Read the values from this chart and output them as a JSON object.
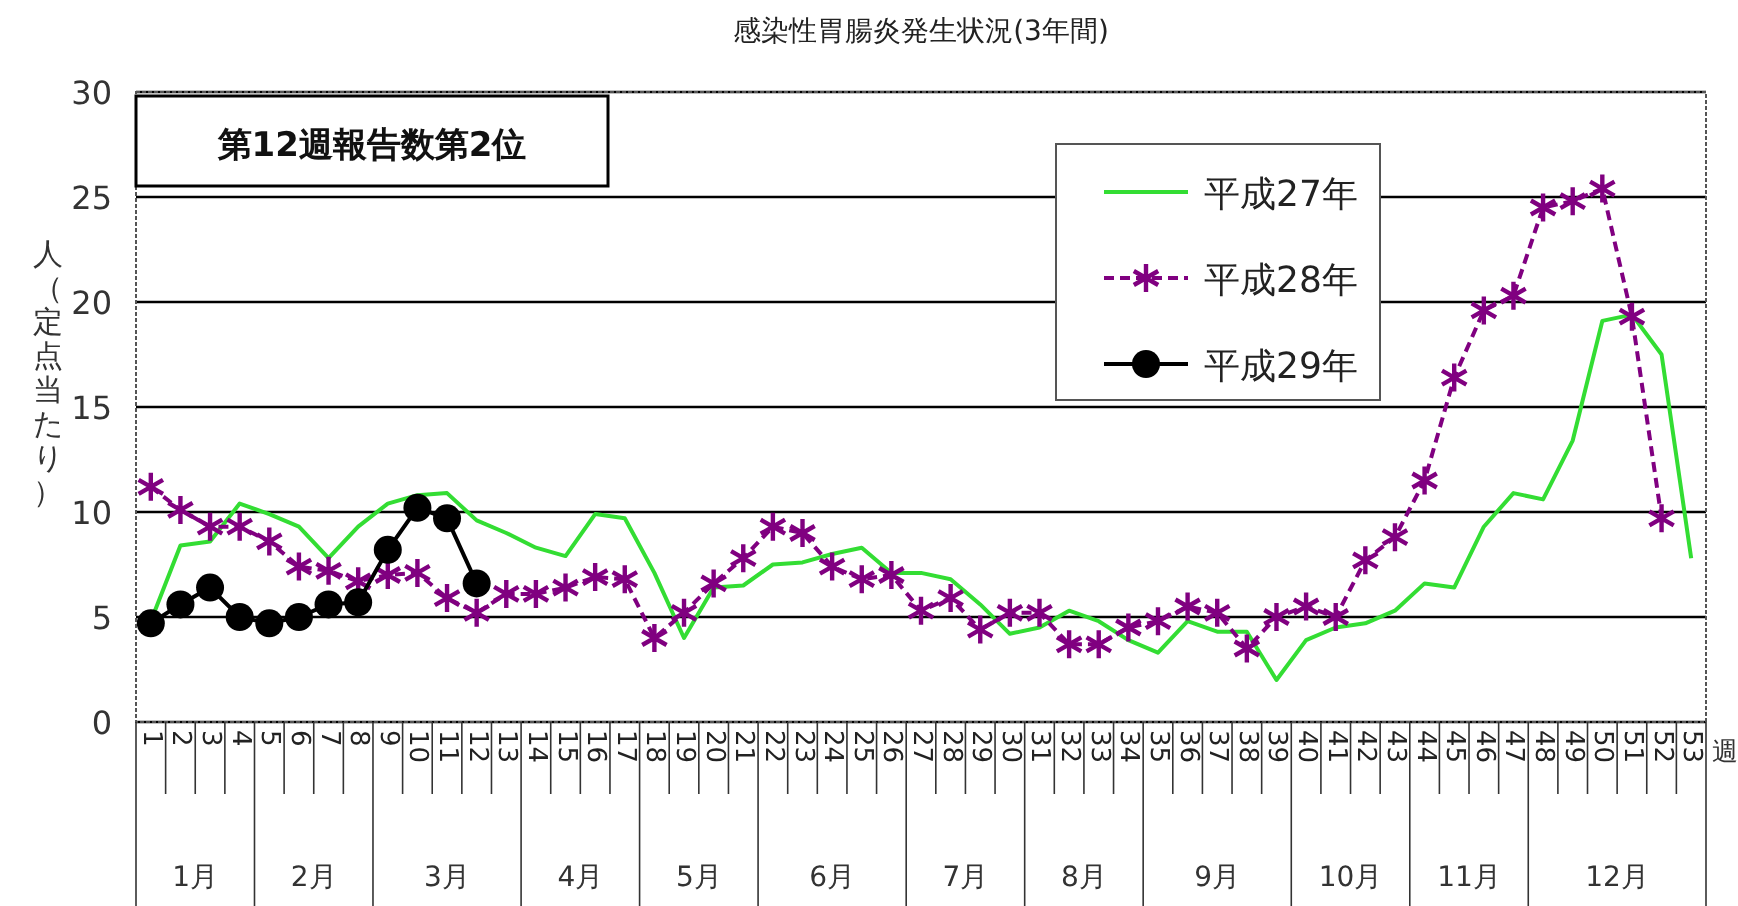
{
  "chart_data": {
    "type": "line",
    "title": "感染性胃腸炎発生状況(3年間)",
    "xlabel": "週",
    "ylabel": "人（定点当たり）",
    "categories": [
      "1",
      "2",
      "3",
      "4",
      "5",
      "6",
      "7",
      "8",
      "9",
      "10",
      "11",
      "12",
      "13",
      "14",
      "15",
      "16",
      "17",
      "18",
      "19",
      "20",
      "21",
      "22",
      "23",
      "24",
      "25",
      "26",
      "27",
      "28",
      "29",
      "30",
      "31",
      "32",
      "33",
      "34",
      "35",
      "36",
      "37",
      "38",
      "39",
      "40",
      "41",
      "42",
      "43",
      "44",
      "45",
      "46",
      "47",
      "48",
      "49",
      "50",
      "51",
      "52",
      "53"
    ],
    "series": [
      {
        "name": "平成27年",
        "color": "#33dd33",
        "marker": "none",
        "line_style": "solid",
        "values": [
          4.8,
          8.4,
          8.6,
          10.4,
          9.9,
          9.3,
          7.8,
          9.3,
          10.4,
          10.8,
          10.9,
          9.6,
          9.0,
          8.3,
          7.9,
          9.9,
          9.7,
          7.1,
          4.0,
          6.4,
          6.5,
          7.5,
          7.6,
          8.0,
          8.3,
          7.1,
          7.1,
          6.8,
          5.6,
          4.2,
          4.5,
          5.3,
          4.8,
          3.9,
          3.3,
          4.8,
          4.3,
          4.3,
          2.0,
          3.9,
          4.5,
          4.7,
          5.3,
          6.6,
          6.4,
          9.3,
          10.9,
          10.6,
          13.4,
          19.1,
          19.4,
          17.5,
          7.8
        ]
      },
      {
        "name": "平成28年",
        "color": "#800080",
        "marker": "cross",
        "line_style": "dashed",
        "values": [
          11.2,
          10.1,
          9.3,
          9.3,
          8.6,
          7.4,
          7.2,
          6.7,
          7.0,
          7.1,
          5.9,
          5.2,
          6.1,
          6.1,
          6.4,
          6.9,
          6.8,
          4.0,
          5.2,
          6.6,
          7.8,
          9.3,
          9.0,
          7.4,
          6.8,
          7.0,
          5.3,
          5.9,
          4.4,
          5.2,
          5.2,
          3.7,
          3.7,
          4.5,
          4.8,
          5.5,
          5.2,
          3.5,
          5.0,
          5.5,
          5.0,
          7.7,
          8.8,
          11.5,
          16.4,
          19.6,
          20.3,
          24.5,
          24.8,
          25.4,
          19.3,
          9.7,
          null
        ]
      },
      {
        "name": "平成29年",
        "color": "#000000",
        "marker": "circle",
        "line_style": "solid",
        "values": [
          4.7,
          5.6,
          6.4,
          5.0,
          4.7,
          5.0,
          5.6,
          5.7,
          8.2,
          10.2,
          9.7,
          6.6,
          null,
          null,
          null,
          null,
          null,
          null,
          null,
          null,
          null,
          null,
          null,
          null,
          null,
          null,
          null,
          null,
          null,
          null,
          null,
          null,
          null,
          null,
          null,
          null,
          null,
          null,
          null,
          null,
          null,
          null,
          null,
          null,
          null,
          null,
          null,
          null,
          null,
          null,
          null,
          null,
          null
        ]
      }
    ],
    "ylim": [
      0,
      30
    ],
    "yticks": [
      0,
      5,
      10,
      15,
      20,
      25,
      30
    ],
    "grid": "y",
    "legend": "top right",
    "annotations": [
      "第12週報告数第2位",
      "1月",
      "2月",
      "3月",
      "4月",
      "5月",
      "6月",
      "7月",
      "8月",
      "9月",
      "10月",
      "11月",
      "12月"
    ]
  }
}
